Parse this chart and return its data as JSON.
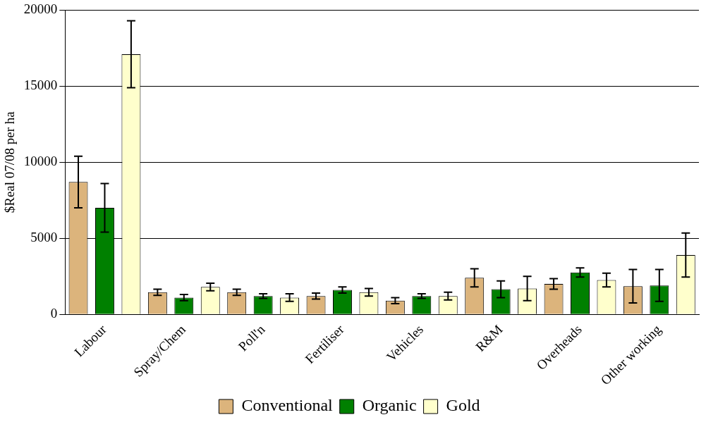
{
  "chart_data": {
    "type": "bar",
    "ylabel": "$Real 07/08 per ha",
    "categories": [
      "Labour",
      "Spray/Chem",
      "Poll'n",
      "Fertiliser",
      "Vehicles",
      "R&M",
      "Overheads",
      "Other working"
    ],
    "series": [
      {
        "name": "Conventional",
        "color": "#dcb47c",
        "values": [
          8700,
          1450,
          1450,
          1200,
          900,
          2400,
          2000,
          1850
        ],
        "errors": [
          1700,
          200,
          200,
          200,
          200,
          600,
          350,
          1100
        ]
      },
      {
        "name": "Organic",
        "color": "#008000",
        "values": [
          7000,
          1100,
          1200,
          1600,
          1200,
          1650,
          2750,
          1900
        ],
        "errors": [
          1600,
          200,
          150,
          200,
          150,
          550,
          300,
          1050
        ]
      },
      {
        "name": "Gold",
        "color": "#ffffcc",
        "values": [
          17100,
          1800,
          1100,
          1450,
          1200,
          1700,
          2250,
          3900
        ],
        "errors": [
          2200,
          250,
          250,
          250,
          250,
          800,
          450,
          1450
        ]
      }
    ],
    "ylim": [
      0,
      20000
    ],
    "yticks": [
      0,
      5000,
      10000,
      15000,
      20000
    ],
    "grid": "y",
    "legend": "bottom"
  }
}
